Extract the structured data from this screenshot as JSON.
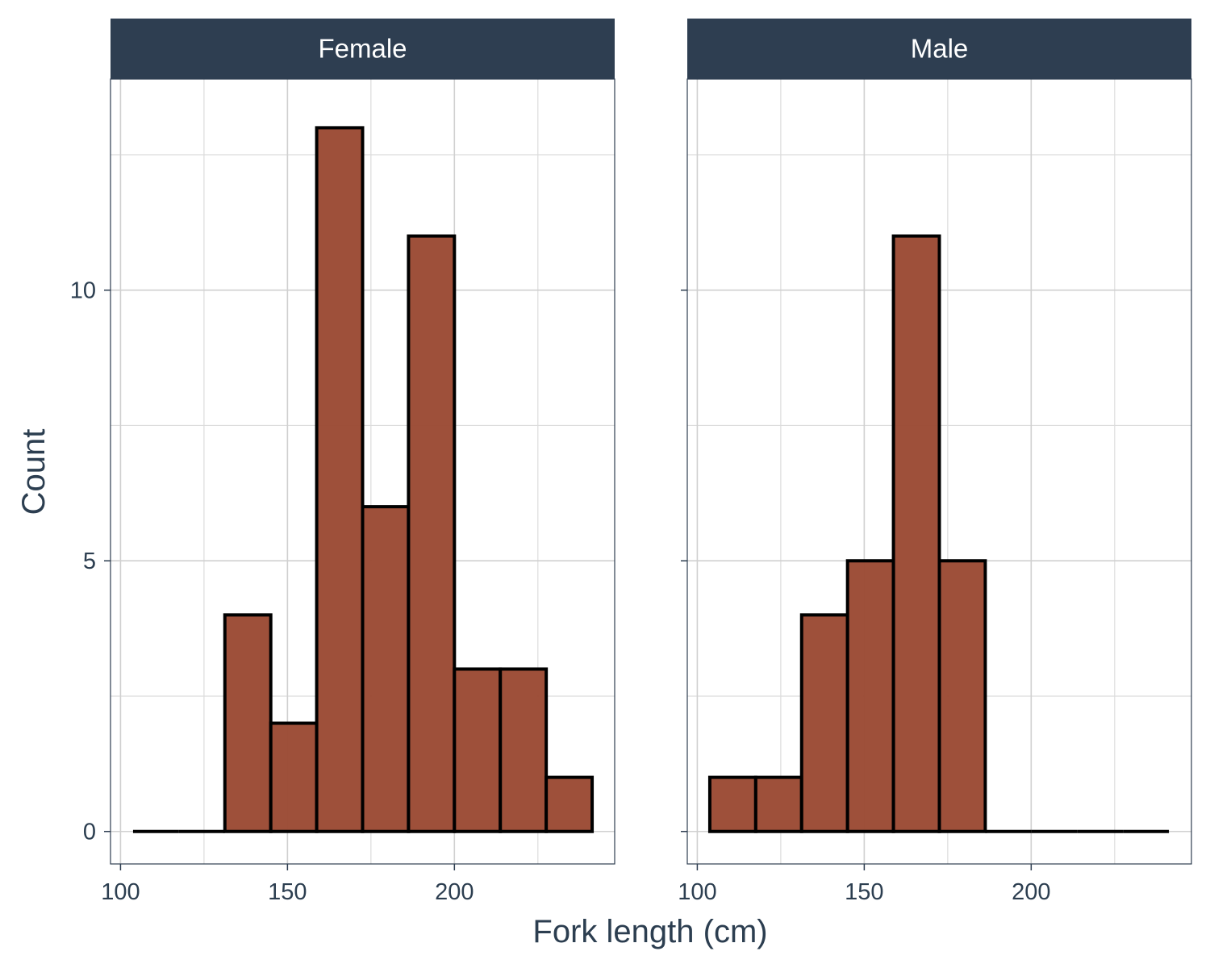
{
  "chart_data": {
    "type": "bar",
    "subtype": "histogram-faceted",
    "xlabel": "Fork length (cm)",
    "ylabel": "Count",
    "xlim": [
      97,
      248
    ],
    "ylim": [
      -0.6,
      13.9
    ],
    "x_ticks": [
      100,
      150,
      200
    ],
    "y_ticks": [
      0,
      5,
      10
    ],
    "bin_width": 13.75,
    "grid": true,
    "fill_color": "#9b4a34",
    "edge_color": "#000000",
    "strip_color": "#2e3e51",
    "panels": [
      {
        "label": "Female",
        "bins": [
          {
            "x0": 103.75,
            "x1": 117.5,
            "count": 0
          },
          {
            "x0": 117.5,
            "x1": 131.25,
            "count": 0
          },
          {
            "x0": 131.25,
            "x1": 145.0,
            "count": 4
          },
          {
            "x0": 145.0,
            "x1": 158.75,
            "count": 2
          },
          {
            "x0": 158.75,
            "x1": 172.5,
            "count": 13
          },
          {
            "x0": 172.5,
            "x1": 186.25,
            "count": 6
          },
          {
            "x0": 186.25,
            "x1": 200.0,
            "count": 11
          },
          {
            "x0": 200.0,
            "x1": 213.75,
            "count": 3
          },
          {
            "x0": 213.75,
            "x1": 227.5,
            "count": 3
          },
          {
            "x0": 227.5,
            "x1": 241.25,
            "count": 1
          }
        ]
      },
      {
        "label": "Male",
        "bins": [
          {
            "x0": 103.75,
            "x1": 117.5,
            "count": 1
          },
          {
            "x0": 117.5,
            "x1": 131.25,
            "count": 1
          },
          {
            "x0": 131.25,
            "x1": 145.0,
            "count": 4
          },
          {
            "x0": 145.0,
            "x1": 158.75,
            "count": 5
          },
          {
            "x0": 158.75,
            "x1": 172.5,
            "count": 11
          },
          {
            "x0": 172.5,
            "x1": 186.25,
            "count": 5
          },
          {
            "x0": 186.25,
            "x1": 200.0,
            "count": 0
          },
          {
            "x0": 200.0,
            "x1": 213.75,
            "count": 0
          },
          {
            "x0": 213.75,
            "x1": 227.5,
            "count": 0
          },
          {
            "x0": 227.5,
            "x1": 241.25,
            "count": 0
          }
        ]
      }
    ]
  }
}
